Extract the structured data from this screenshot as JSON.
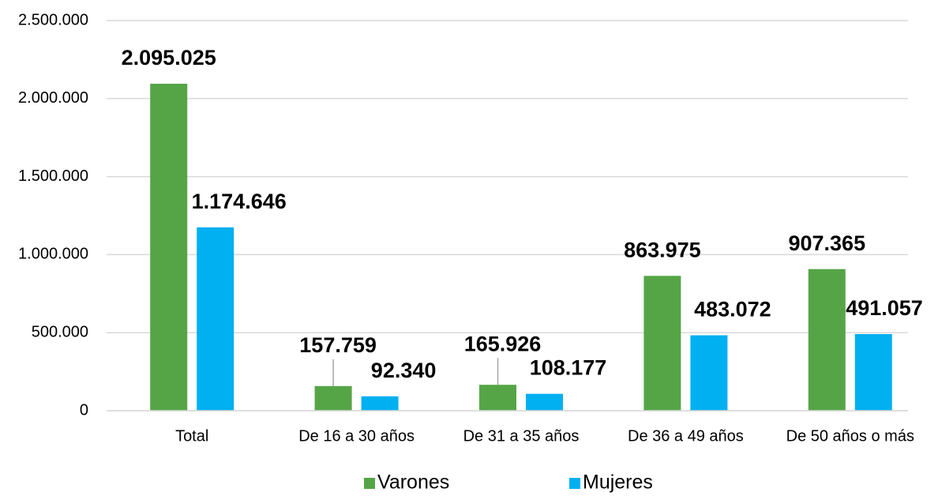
{
  "chart_data": {
    "type": "bar",
    "categories": [
      "Total",
      "De 16 a 30 años",
      "De 31 a 35 años",
      "De 36 a 49 años",
      "De 50 años o más"
    ],
    "series": [
      {
        "name": "Varones",
        "color": "#55a546",
        "values": [
          2095025,
          157759,
          165926,
          863975,
          907365
        ],
        "value_labels": [
          "2.095.025",
          "157.759",
          "165.926",
          "863.975",
          "907.365"
        ]
      },
      {
        "name": "Mujeres",
        "color": "#00b0f0",
        "values": [
          1174646,
          92340,
          108177,
          483072,
          491057
        ],
        "value_labels": [
          "1.174.646",
          "92.340",
          "108.177",
          "483.072",
          "491.057"
        ]
      }
    ],
    "ylim": [
      0,
      2500000
    ],
    "yticks": [
      0,
      {
        "value": 500000,
        "label": "500.000"
      },
      {
        "value": 1000000,
        "label": "1.000.000"
      },
      {
        "value": 1500000,
        "label": "1.500.000"
      },
      {
        "value": 2000000,
        "label": "2.000.000"
      },
      {
        "value": 2500000,
        "label": "2.500.000"
      }
    ],
    "grid": true,
    "legend": "bottom"
  }
}
